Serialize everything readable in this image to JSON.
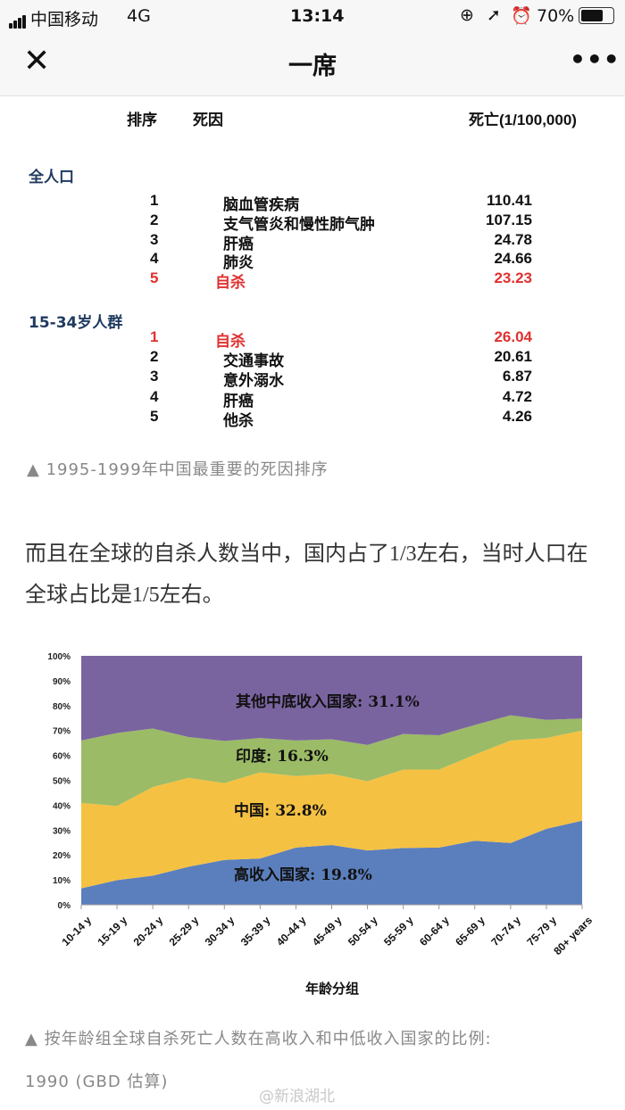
{
  "status_bar": {
    "carrier": "中国移动",
    "network": "4G",
    "time": "13:14",
    "battery": "70%",
    "icons": [
      "signal-icon",
      "orientation-lock-icon",
      "location-icon",
      "alarm-icon",
      "battery-icon"
    ]
  },
  "navbar": {
    "title": "一席",
    "close_icon": "close-icon",
    "more_icon": "more-icon"
  },
  "table": {
    "headers": {
      "rank": "排序",
      "cause": "死因",
      "deaths": "死亡(1/100,000)"
    },
    "groups": [
      {
        "label": "全人口",
        "rows": [
          {
            "rank": "1",
            "cause": "脑血管疾病",
            "value": "110.41",
            "highlight": false
          },
          {
            "rank": "2",
            "cause": "支气管炎和慢性肺气肿",
            "value": "107.15",
            "highlight": false
          },
          {
            "rank": "3",
            "cause": "肝癌",
            "value": "24.78",
            "highlight": false
          },
          {
            "rank": "4",
            "cause": "肺炎",
            "value": "24.66",
            "highlight": false
          },
          {
            "rank": "5",
            "cause": "自杀",
            "value": "23.23",
            "highlight": true
          }
        ]
      },
      {
        "label": "15-34岁人群",
        "rows": [
          {
            "rank": "1",
            "cause": "自杀",
            "value": "26.04",
            "highlight": true
          },
          {
            "rank": "2",
            "cause": "交通事故",
            "value": "20.61",
            "highlight": false
          },
          {
            "rank": "3",
            "cause": "意外溺水",
            "value": "6.87",
            "highlight": false
          },
          {
            "rank": "4",
            "cause": "肝癌",
            "value": "4.72",
            "highlight": false
          },
          {
            "rank": "5",
            "cause": "他杀",
            "value": "4.26",
            "highlight": false
          }
        ]
      }
    ],
    "highlight_color": "#e03030"
  },
  "caption1": "▲ 1995-1999年中国最重要的死因排序",
  "paragraph": {
    "p1": "而且在全球的自杀人数当中，国内占了",
    "f1": "1/3",
    "p2": "左右，当时人口在全球占比是",
    "f2": "1/5",
    "p3": "左右。"
  },
  "chart_data": {
    "type": "area",
    "stacked": true,
    "categories": [
      "10-14 y",
      "15-19 y",
      "20-24 y",
      "25-29 y",
      "30-34 y",
      "35-39 y",
      "40-44 y",
      "45-49 y",
      "50-54 y",
      "55-59 y",
      "60-64 y",
      "65-69 y",
      "70-74 y",
      "75-79 y",
      "80+ years"
    ],
    "xlabel": "年龄分组",
    "ylim": [
      0,
      100
    ],
    "yticks": [
      "0%",
      "10%",
      "20%",
      "30%",
      "40%",
      "50%",
      "60%",
      "70%",
      "80%",
      "90%",
      "100%"
    ],
    "series": [
      {
        "name": "高收入国家: 19.8%",
        "color": "#5b7fbd",
        "values": [
          6.6,
          9.9,
          11.7,
          15.3,
          18.0,
          18.6,
          23.0,
          24.0,
          21.8,
          22.8,
          23.0,
          25.7,
          24.8,
          30.5,
          33.8
        ]
      },
      {
        "name": "中国: 32.8%",
        "color": "#f5c142",
        "values": [
          34.3,
          29.8,
          35.6,
          35.7,
          30.9,
          34.6,
          28.7,
          28.6,
          27.8,
          31.5,
          31.3,
          34.6,
          41.2,
          36.5,
          36.2
        ]
      },
      {
        "name": "印度: 16.3%",
        "color": "#9bbb66",
        "values": [
          25.1,
          29.3,
          23.5,
          16.4,
          16.9,
          13.8,
          14.3,
          13.9,
          14.6,
          14.3,
          13.8,
          11.9,
          10.1,
          7.3,
          4.8
        ]
      },
      {
        "name": "其他中底收入国家: 31.1%",
        "color": "#7a64a0",
        "values": [
          34.0,
          31.0,
          29.2,
          32.6,
          34.2,
          33.0,
          34.0,
          33.5,
          35.8,
          31.4,
          31.9,
          27.8,
          23.9,
          25.7,
          25.2
        ]
      }
    ]
  },
  "caption2_line1": "▲ 按年龄组全球自杀死亡人数在高收入和中低收入国家的比例:",
  "caption2_line2": "1990 (GBD 估算)",
  "watermark": "@新浪湖北"
}
